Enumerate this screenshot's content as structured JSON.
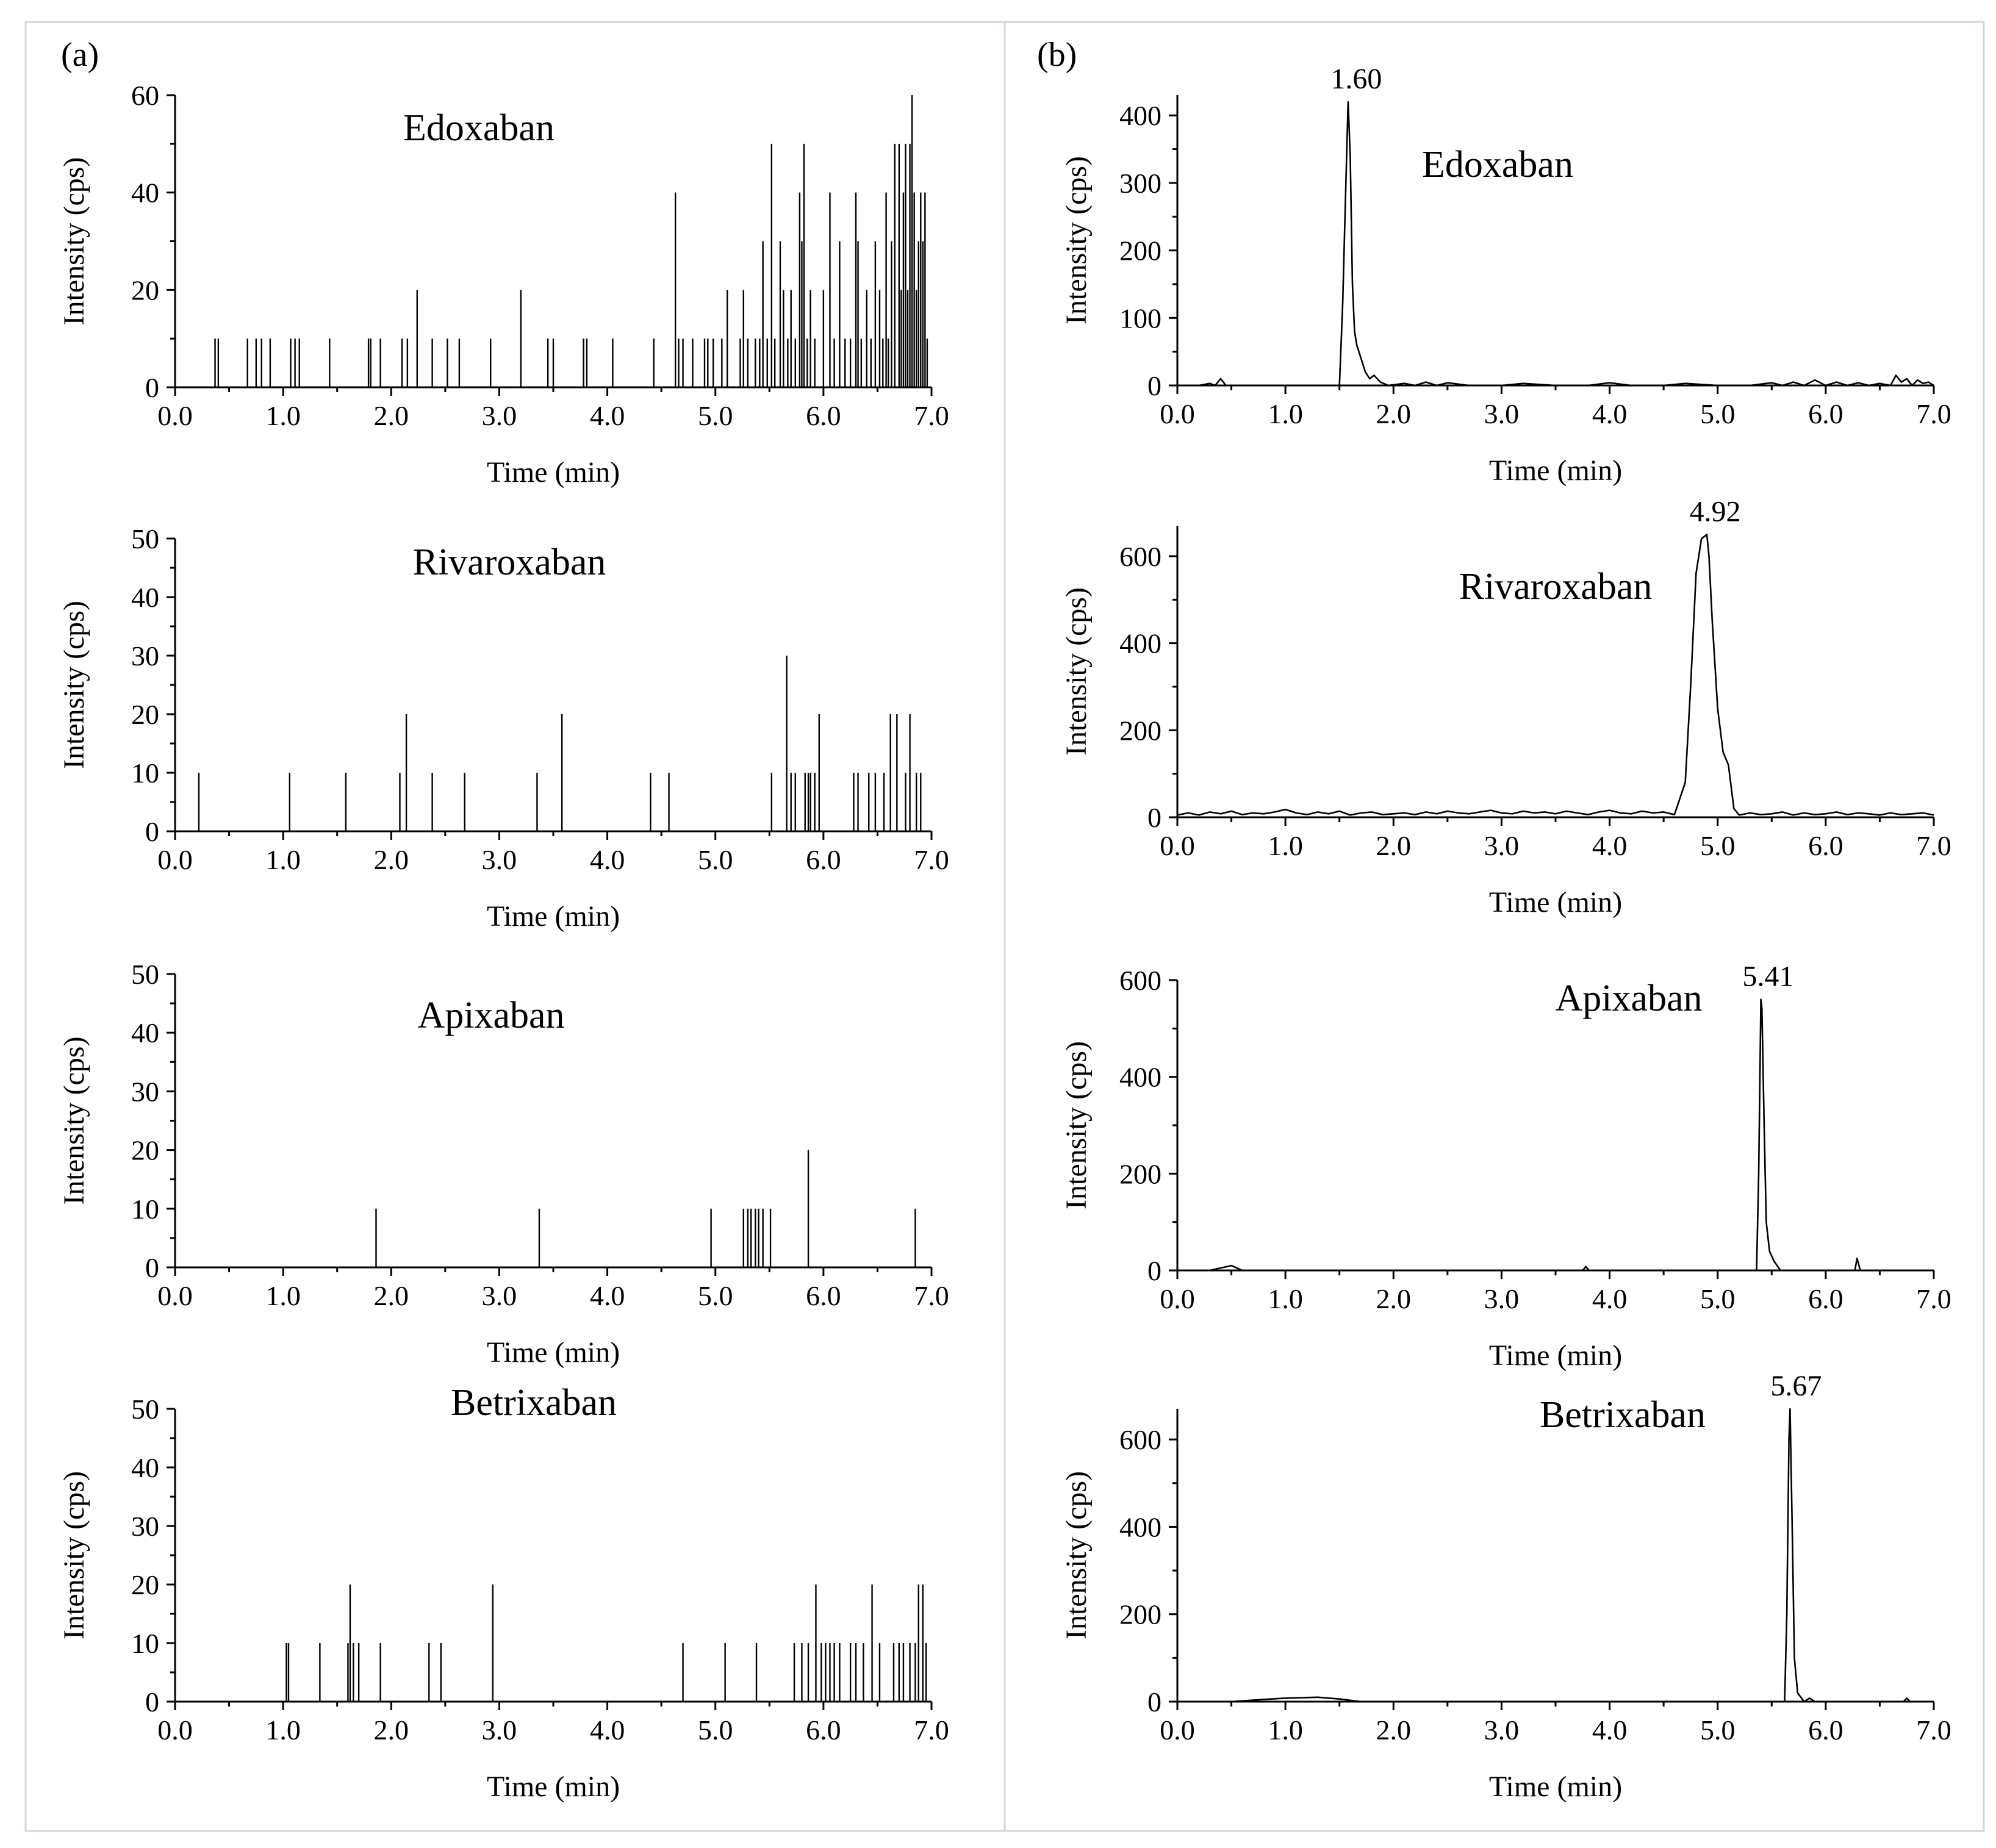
{
  "panels": [
    {
      "label": "(a)"
    },
    {
      "label": "(b)"
    }
  ],
  "chart_data": [
    {
      "type": "bar",
      "title": "Edoxaban",
      "xlabel": "Time (min)",
      "ylabel": "Intensity (cps)",
      "xlim": [
        0,
        7
      ],
      "ylim": [
        0,
        60
      ],
      "xticks": [
        "0.0",
        "1.0",
        "2.0",
        "3.0",
        "4.0",
        "5.0",
        "6.0",
        "7.0"
      ],
      "yticks": [
        "0",
        "20",
        "40",
        "60"
      ],
      "x": [
        0.37,
        0.4,
        0.67,
        0.75,
        0.8,
        0.88,
        1.07,
        1.11,
        1.15,
        1.43,
        1.79,
        1.81,
        1.9,
        2.1,
        2.15,
        2.24,
        2.38,
        2.52,
        2.63,
        2.92,
        3.2,
        3.45,
        3.5,
        3.78,
        3.81,
        4.05,
        4.43,
        4.63,
        4.66,
        4.7,
        4.79,
        4.9,
        4.93,
        4.98,
        5.06,
        5.11,
        5.23,
        5.26,
        5.3,
        5.37,
        5.41,
        5.44,
        5.48,
        5.52,
        5.55,
        5.6,
        5.63,
        5.67,
        5.7,
        5.74,
        5.78,
        5.8,
        5.82,
        5.85,
        5.88,
        5.92,
        6.0,
        6.06,
        6.1,
        6.15,
        6.2,
        6.25,
        6.3,
        6.32,
        6.35,
        6.4,
        6.44,
        6.48,
        6.52,
        6.55,
        6.58,
        6.6,
        6.63,
        6.66,
        6.7,
        6.72,
        6.74,
        6.76,
        6.78,
        6.8,
        6.82,
        6.84,
        6.86,
        6.88,
        6.9,
        6.92,
        6.94,
        6.96
      ],
      "y": [
        10,
        10,
        10,
        10,
        10,
        10,
        10,
        10,
        10,
        10,
        10,
        10,
        10,
        10,
        10,
        20,
        10,
        10,
        10,
        10,
        20,
        10,
        10,
        10,
        10,
        10,
        10,
        40,
        10,
        10,
        10,
        10,
        10,
        10,
        10,
        20,
        10,
        20,
        10,
        10,
        10,
        30,
        10,
        50,
        10,
        30,
        20,
        10,
        20,
        10,
        40,
        30,
        50,
        10,
        20,
        10,
        20,
        40,
        10,
        30,
        10,
        10,
        40,
        30,
        10,
        20,
        10,
        30,
        20,
        10,
        40,
        10,
        30,
        50,
        50,
        20,
        40,
        50,
        20,
        50,
        60,
        40,
        20,
        30,
        40,
        30,
        40,
        10
      ]
    },
    {
      "type": "bar",
      "title": "Rivaroxaban",
      "xlabel": "Time (min)",
      "ylabel": "Intensity (cps)",
      "xlim": [
        0,
        7
      ],
      "ylim": [
        0,
        50
      ],
      "xticks": [
        "0.0",
        "1.0",
        "2.0",
        "3.0",
        "4.0",
        "5.0",
        "6.0",
        "7.0"
      ],
      "yticks": [
        "0",
        "10",
        "20",
        "30",
        "40",
        "50"
      ],
      "x": [
        0.22,
        1.06,
        1.58,
        2.08,
        2.14,
        2.38,
        2.68,
        3.35,
        3.58,
        4.4,
        4.57,
        5.52,
        5.66,
        5.7,
        5.74,
        5.83,
        5.86,
        5.88,
        5.92,
        5.96,
        6.28,
        6.32,
        6.42,
        6.48,
        6.56,
        6.62,
        6.68,
        6.76,
        6.8,
        6.86,
        6.9
      ],
      "y": [
        10,
        10,
        10,
        10,
        20,
        10,
        10,
        10,
        20,
        10,
        10,
        10,
        30,
        10,
        10,
        10,
        10,
        10,
        10,
        20,
        10,
        10,
        10,
        10,
        10,
        20,
        20,
        10,
        20,
        10,
        10
      ]
    },
    {
      "type": "bar",
      "title": "Apixaban",
      "xlabel": "Time (min)",
      "ylabel": "Intensity (cps)",
      "xlim": [
        0,
        7
      ],
      "ylim": [
        0,
        50
      ],
      "xticks": [
        "0.0",
        "1.0",
        "2.0",
        "3.0",
        "4.0",
        "5.0",
        "6.0",
        "7.0"
      ],
      "yticks": [
        "0",
        "10",
        "20",
        "30",
        "40",
        "50"
      ],
      "x": [
        1.86,
        3.37,
        4.96,
        5.26,
        5.3,
        5.33,
        5.37,
        5.4,
        5.44,
        5.51,
        5.86,
        6.85
      ],
      "y": [
        10,
        10,
        10,
        10,
        10,
        10,
        10,
        10,
        10,
        10,
        20,
        10
      ]
    },
    {
      "type": "bar",
      "title": "Betrixaban",
      "xlabel": "Time (min)",
      "ylabel": "Intensity (cps)",
      "xlim": [
        0,
        7
      ],
      "ylim": [
        0,
        50
      ],
      "xticks": [
        "0.0",
        "1.0",
        "2.0",
        "3.0",
        "4.0",
        "5.0",
        "6.0",
        "7.0"
      ],
      "yticks": [
        "0",
        "10",
        "20",
        "30",
        "40",
        "50"
      ],
      "x": [
        1.03,
        1.05,
        1.34,
        1.6,
        1.62,
        1.65,
        1.7,
        1.9,
        2.35,
        2.46,
        2.94,
        4.7,
        5.09,
        5.38,
        5.73,
        5.8,
        5.86,
        5.93,
        5.98,
        6.02,
        6.06,
        6.1,
        6.15,
        6.25,
        6.3,
        6.37,
        6.45,
        6.52,
        6.65,
        6.7,
        6.74,
        6.8,
        6.85,
        6.88,
        6.92,
        6.95
      ],
      "y": [
        10,
        10,
        10,
        10,
        20,
        10,
        10,
        10,
        10,
        10,
        20,
        10,
        10,
        10,
        10,
        10,
        10,
        20,
        10,
        10,
        10,
        10,
        10,
        10,
        10,
        10,
        20,
        10,
        10,
        10,
        10,
        10,
        10,
        20,
        20,
        10
      ]
    },
    {
      "type": "line",
      "title": "Edoxaban",
      "xlabel": "Time (min)",
      "ylabel": "Intensity (cps)",
      "xlim": [
        0,
        7
      ],
      "ylim": [
        0,
        430
      ],
      "xticks": [
        "0.0",
        "1.0",
        "2.0",
        "3.0",
        "4.0",
        "5.0",
        "6.0",
        "7.0"
      ],
      "yticks": [
        "0",
        "100",
        "200",
        "300",
        "400"
      ],
      "peak": {
        "x": 1.6,
        "label": "1.60"
      },
      "x": [
        0.0,
        0.2,
        0.3,
        0.35,
        0.4,
        0.45,
        0.6,
        1.0,
        1.4,
        1.5,
        1.53,
        1.56,
        1.58,
        1.6,
        1.62,
        1.64,
        1.66,
        1.7,
        1.74,
        1.78,
        1.82,
        1.88,
        1.95,
        2.1,
        2.2,
        2.3,
        2.4,
        2.5,
        2.7,
        3.0,
        3.2,
        3.5,
        3.8,
        4.0,
        4.2,
        4.5,
        4.7,
        5.0,
        5.3,
        5.5,
        5.6,
        5.7,
        5.8,
        5.9,
        6.0,
        6.1,
        6.2,
        6.3,
        6.4,
        6.5,
        6.6,
        6.65,
        6.7,
        6.75,
        6.8,
        6.85,
        6.9,
        6.95,
        7.0
      ],
      "y": [
        0,
        0,
        3,
        0,
        10,
        0,
        0,
        0,
        0,
        0,
        120,
        300,
        420,
        340,
        150,
        80,
        60,
        40,
        20,
        10,
        15,
        5,
        0,
        3,
        0,
        5,
        0,
        4,
        0,
        0,
        3,
        0,
        0,
        4,
        0,
        0,
        3,
        0,
        0,
        4,
        0,
        5,
        0,
        8,
        0,
        5,
        0,
        4,
        0,
        3,
        0,
        15,
        5,
        10,
        0,
        8,
        3,
        5,
        0
      ]
    },
    {
      "type": "line",
      "title": "Rivaroxaban",
      "xlabel": "Time (min)",
      "ylabel": "Intensity (cps)",
      "xlim": [
        0,
        7
      ],
      "ylim": [
        0,
        670
      ],
      "xticks": [
        "0.0",
        "1.0",
        "2.0",
        "3.0",
        "4.0",
        "5.0",
        "6.0",
        "7.0"
      ],
      "yticks": [
        "0",
        "200",
        "400",
        "600"
      ],
      "peak": {
        "x": 4.92,
        "label": "4.92"
      },
      "x": [
        0.0,
        0.1,
        0.2,
        0.3,
        0.4,
        0.5,
        0.6,
        0.7,
        0.8,
        0.9,
        1.0,
        1.1,
        1.2,
        1.3,
        1.4,
        1.5,
        1.6,
        1.7,
        1.8,
        1.9,
        2.0,
        2.1,
        2.2,
        2.3,
        2.4,
        2.5,
        2.6,
        2.7,
        2.8,
        2.9,
        3.0,
        3.1,
        3.2,
        3.3,
        3.4,
        3.5,
        3.6,
        3.7,
        3.8,
        3.9,
        4.0,
        4.1,
        4.2,
        4.3,
        4.4,
        4.5,
        4.6,
        4.7,
        4.75,
        4.8,
        4.85,
        4.9,
        4.92,
        4.95,
        5.0,
        5.05,
        5.1,
        5.15,
        5.2,
        5.3,
        5.4,
        5.5,
        5.6,
        5.7,
        5.8,
        5.9,
        6.0,
        6.1,
        6.2,
        6.3,
        6.4,
        6.5,
        6.6,
        6.7,
        6.8,
        6.9,
        7.0
      ],
      "y": [
        5,
        10,
        5,
        12,
        8,
        14,
        6,
        10,
        8,
        12,
        18,
        10,
        6,
        12,
        8,
        14,
        5,
        10,
        12,
        6,
        8,
        10,
        6,
        12,
        8,
        14,
        10,
        8,
        12,
        16,
        10,
        8,
        14,
        10,
        12,
        8,
        14,
        10,
        6,
        12,
        16,
        10,
        8,
        14,
        10,
        12,
        6,
        80,
        300,
        560,
        640,
        650,
        600,
        450,
        250,
        150,
        120,
        20,
        5,
        10,
        6,
        8,
        12,
        5,
        10,
        6,
        8,
        12,
        6,
        10,
        8,
        5,
        10,
        6,
        8,
        10,
        5
      ]
    },
    {
      "type": "line",
      "title": "Apixaban",
      "xlabel": "Time (min)",
      "ylabel": "Intensity (cps)",
      "xlim": [
        0,
        7
      ],
      "ylim": [
        0,
        600
      ],
      "xticks": [
        "0.0",
        "1.0",
        "2.0",
        "3.0",
        "4.0",
        "5.0",
        "6.0",
        "7.0"
      ],
      "yticks": [
        "0",
        "200",
        "400",
        "600"
      ],
      "peak": {
        "x": 5.41,
        "label": "5.41"
      },
      "x": [
        0.0,
        0.3,
        0.4,
        0.5,
        0.6,
        1.0,
        2.0,
        3.0,
        3.75,
        3.78,
        3.81,
        4.5,
        5.0,
        5.36,
        5.38,
        5.4,
        5.41,
        5.43,
        5.45,
        5.48,
        5.52,
        5.58,
        5.7,
        6.2,
        6.27,
        6.29,
        6.32,
        6.5,
        7.0
      ],
      "y": [
        0,
        0,
        5,
        10,
        0,
        0,
        0,
        0,
        0,
        8,
        0,
        0,
        0,
        0,
        200,
        560,
        540,
        300,
        100,
        40,
        20,
        0,
        0,
        0,
        0,
        25,
        0,
        0,
        0
      ]
    },
    {
      "type": "line",
      "title": "Betrixaban",
      "xlabel": "Time (min)",
      "ylabel": "Intensity (cps)",
      "xlim": [
        0,
        7
      ],
      "ylim": [
        0,
        670
      ],
      "xticks": [
        "0.0",
        "1.0",
        "2.0",
        "3.0",
        "4.0",
        "5.0",
        "6.0",
        "7.0"
      ],
      "yticks": [
        "0",
        "200",
        "400",
        "600"
      ],
      "peak": {
        "x": 5.67,
        "label": "5.67"
      },
      "x": [
        0.0,
        0.5,
        0.8,
        1.0,
        1.3,
        1.5,
        1.7,
        2.0,
        3.0,
        4.0,
        5.0,
        5.5,
        5.62,
        5.64,
        5.66,
        5.67,
        5.69,
        5.71,
        5.74,
        5.8,
        5.85,
        5.9,
        6.5,
        6.72,
        6.75,
        6.78,
        7.0
      ],
      "y": [
        0,
        0,
        5,
        8,
        10,
        6,
        0,
        0,
        0,
        0,
        0,
        0,
        0,
        200,
        600,
        670,
        400,
        100,
        20,
        0,
        8,
        0,
        0,
        0,
        8,
        0,
        0
      ]
    }
  ]
}
